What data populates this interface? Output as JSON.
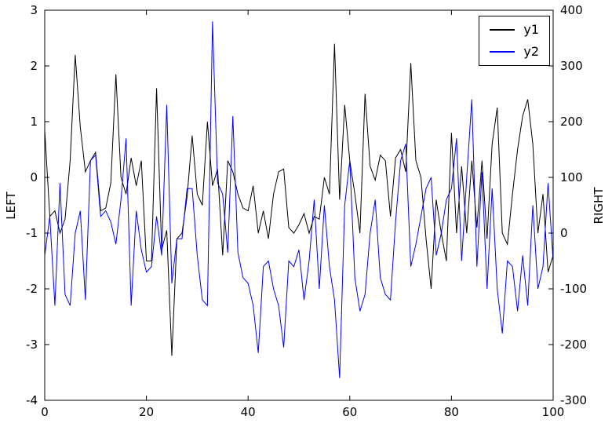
{
  "chart_data": {
    "type": "line",
    "title": "",
    "xlabel": "",
    "left_ylabel": "LEFT",
    "right_ylabel": "RIGHT",
    "xlim": [
      0,
      100
    ],
    "left_ylim": [
      -4,
      3
    ],
    "right_ylim": [
      -300,
      400
    ],
    "xticks": [
      0,
      20,
      40,
      60,
      80,
      100
    ],
    "left_yticks": [
      -4,
      -3,
      -2,
      -1,
      0,
      1,
      2,
      3
    ],
    "right_yticks": [
      -300,
      -200,
      -100,
      0,
      100,
      200,
      300,
      400
    ],
    "grid": false,
    "legend": {
      "position": "upper right",
      "entries": [
        {
          "label": "y1",
          "color": "#000000"
        },
        {
          "label": "y2",
          "color": "#0000ff"
        }
      ]
    },
    "series": [
      {
        "name": "y1",
        "axis": "left",
        "color": "#000000",
        "values": [
          0.85,
          -0.7,
          -0.6,
          -1.0,
          -0.75,
          0.3,
          2.2,
          0.9,
          0.1,
          0.3,
          0.45,
          -0.6,
          -0.55,
          -0.1,
          1.85,
          0.0,
          -0.3,
          0.35,
          -0.15,
          0.3,
          -1.5,
          -1.5,
          1.6,
          -1.3,
          -0.95,
          -3.2,
          -1.1,
          -1.0,
          -0.35,
          0.75,
          -0.3,
          -0.5,
          1.0,
          -0.15,
          0.15,
          -1.4,
          0.3,
          0.1,
          -0.3,
          -0.55,
          -0.6,
          -0.15,
          -1.0,
          -0.6,
          -1.1,
          -0.3,
          0.1,
          0.15,
          -0.9,
          -1.0,
          -0.85,
          -0.65,
          -1.0,
          -0.7,
          -0.75,
          0.0,
          -0.3,
          2.4,
          -0.4,
          1.3,
          0.3,
          -0.3,
          -1.0,
          1.5,
          0.2,
          -0.05,
          0.4,
          0.3,
          -0.7,
          0.35,
          0.5,
          0.1,
          2.05,
          0.3,
          0.0,
          -1.1,
          -2.0,
          -0.4,
          -1.0,
          -1.5,
          0.8,
          -1.0,
          0.2,
          -1.0,
          0.3,
          -0.9,
          0.3,
          -1.1,
          0.6,
          1.25,
          -1.0,
          -1.2,
          -0.3,
          0.5,
          1.1,
          1.4,
          0.6,
          -1.0,
          -0.3,
          -1.7,
          -1.4
        ]
      },
      {
        "name": "y2",
        "axis": "right",
        "color": "#0000ff",
        "values": [
          -40,
          30,
          -130,
          90,
          -110,
          -130,
          0,
          40,
          -120,
          130,
          140,
          30,
          40,
          20,
          -20,
          60,
          170,
          -130,
          40,
          -30,
          -70,
          -60,
          30,
          -40,
          230,
          -90,
          -10,
          -10,
          80,
          80,
          -40,
          -120,
          -130,
          380,
          90,
          70,
          -35,
          210,
          -35,
          -80,
          -90,
          -130,
          -215,
          -60,
          -50,
          -100,
          -130,
          -205,
          -50,
          -60,
          -30,
          -120,
          -50,
          60,
          -100,
          50,
          -60,
          -120,
          -260,
          50,
          130,
          -80,
          -140,
          -110,
          0,
          60,
          -80,
          -110,
          -120,
          20,
          130,
          160,
          -60,
          -20,
          30,
          80,
          100,
          -40,
          0,
          60,
          80,
          170,
          -50,
          100,
          240,
          -60,
          110,
          -100,
          80,
          -100,
          -180,
          -50,
          -60,
          -140,
          -40,
          -130,
          50,
          -100,
          -60,
          90,
          -50
        ]
      }
    ]
  }
}
